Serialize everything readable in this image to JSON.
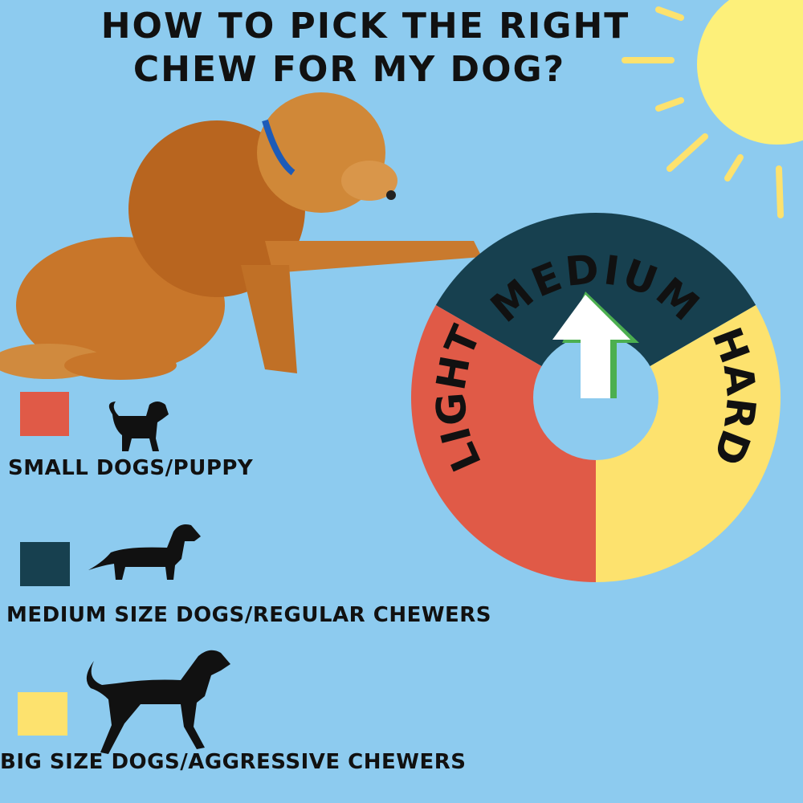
{
  "title": {
    "line1": "HOW TO PICK THE RIGHT",
    "line2": "CHEW FOR MY DOG?"
  },
  "colors": {
    "background": "#8dcbef",
    "light": "#e05a47",
    "medium": "#17404f",
    "hard": "#fde26e",
    "sun": "#fdf07a",
    "arrow": "#4caf50"
  },
  "wheel": {
    "segments": [
      {
        "label": "MEDIUM",
        "color": "#17404f"
      },
      {
        "label": "HARD",
        "color": "#fde26e"
      },
      {
        "label": "LIGHT",
        "color": "#e05a47"
      }
    ],
    "pointer": "MEDIUM"
  },
  "legend": [
    {
      "color": "#e05a47",
      "icon": "small-dog-icon",
      "label": "SMALL DOGS/PUPPY"
    },
    {
      "color": "#17404f",
      "icon": "dachshund-icon",
      "label": "MEDIUM SIZE DOGS/REGULAR CHEWERS"
    },
    {
      "color": "#fde26e",
      "icon": "big-dog-icon",
      "label": "BIG SIZE DOGS/AGGRESSIVE CHEWERS"
    }
  ]
}
